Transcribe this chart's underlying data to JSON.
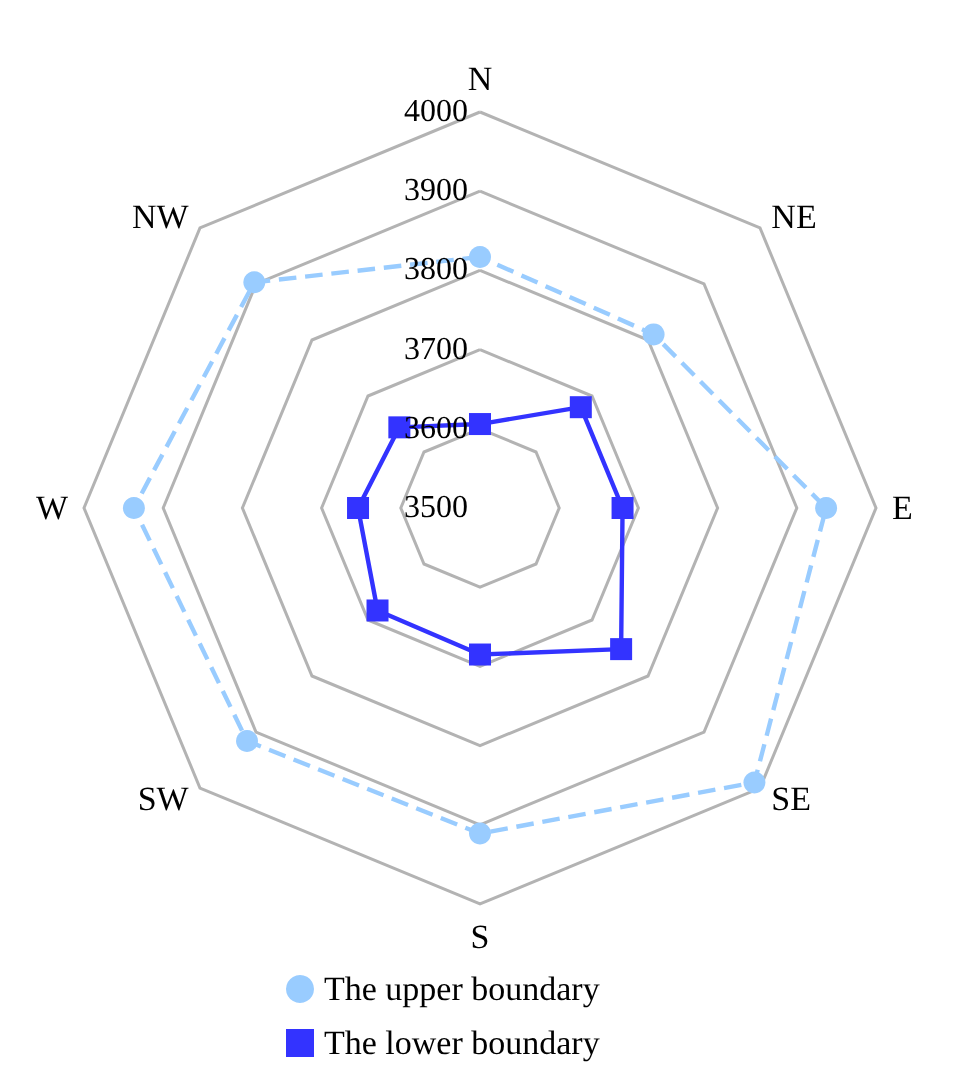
{
  "chart_data": {
    "type": "radar",
    "categories": [
      "N",
      "NE",
      "E",
      "SE",
      "S",
      "SW",
      "W",
      "NW"
    ],
    "series": [
      {
        "name": "The upper boundary",
        "color": "#99ccff",
        "line_style": "dashed",
        "marker": "circle",
        "values": [
          3817,
          3810,
          3937,
          3990,
          3911,
          3916,
          3937,
          3903
        ]
      },
      {
        "name": "The lower boundary",
        "color": "#3333ff",
        "line_style": "solid",
        "marker": "square",
        "values": [
          3606,
          3680,
          3680,
          3752,
          3685,
          3683,
          3654,
          3644
        ]
      }
    ],
    "ylim": [
      3500,
      4000
    ],
    "yticks": [
      3500,
      3600,
      3700,
      3800,
      3900,
      4000
    ],
    "grid": true,
    "legend": "bottom"
  }
}
